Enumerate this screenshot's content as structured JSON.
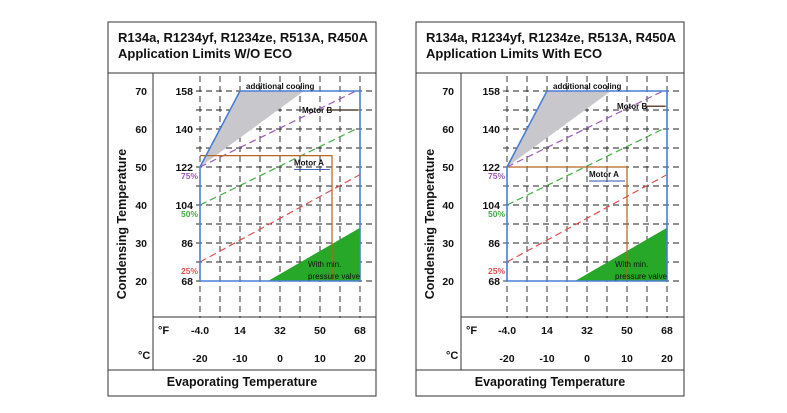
{
  "colors": {
    "pct75": "#9b59b6",
    "pct50": "#3fae3f",
    "pct25": "#e05050",
    "envelope": "#4a7fd6",
    "motor": "#b5651d",
    "cooling_fill": "#c8c8cc",
    "valve_fill": "#28a828"
  },
  "chart_data": [
    {
      "type": "line",
      "title_line1": "R134a, R1234yf, R1234ze, R513A, R450A",
      "title_line2": "Application Limits W/O ECO",
      "xlabel": "Evaporating Temperature",
      "ylabel": "Condensing Temperature",
      "x_unit_f": "°F",
      "x_unit_c": "°C",
      "x_ticks_f": [
        "-4.0",
        "14",
        "32",
        "50",
        "68"
      ],
      "x_ticks_c": [
        "-20",
        "-10",
        "0",
        "10",
        "20"
      ],
      "y_ticks_c": [
        "70",
        "60",
        "50",
        "40",
        "30",
        "20"
      ],
      "y_ticks_f": [
        "158",
        "140",
        "122",
        "104",
        "86",
        "68"
      ],
      "xlim": [
        -20,
        20
      ],
      "ylim": [
        20,
        70
      ],
      "grid": true,
      "envelope": [
        [
          -20,
          20
        ],
        [
          -20,
          50
        ],
        [
          -10,
          70
        ],
        [
          20,
          70
        ],
        [
          20,
          20
        ]
      ],
      "additional_cooling": {
        "label": "additional cooling",
        "points": [
          [
            -20,
            50
          ],
          [
            -10,
            70
          ],
          [
            6,
            70
          ]
        ]
      },
      "lines": [
        {
          "name": "75%",
          "points": [
            [
              -20,
              50
            ],
            [
              19,
              70
            ]
          ]
        },
        {
          "name": "50%",
          "points": [
            [
              -20,
              40
            ],
            [
              19,
              60
            ]
          ]
        },
        {
          "name": "25%",
          "points": [
            [
              -20,
              25
            ],
            [
              20,
              48
            ]
          ]
        }
      ],
      "motor_a": {
        "label": "Motor A",
        "points": [
          [
            -20,
            53
          ],
          [
            13,
            53
          ],
          [
            13,
            20
          ]
        ]
      },
      "motor_b": {
        "label": "Motor B",
        "points": [
          [
            12,
            65
          ],
          [
            20,
            65
          ]
        ]
      },
      "valve": {
        "label_line1": "With  min.",
        "label_line2": "pressure  valve",
        "points": [
          [
            -3,
            20
          ],
          [
            20,
            34
          ],
          [
            20,
            20
          ]
        ]
      }
    },
    {
      "type": "line",
      "title_line1": "R134a, R1234yf, R1234ze, R513A, R450A",
      "title_line2": "Application Limits With ECO",
      "xlabel": "Evaporating Temperature",
      "ylabel": "Condensing Temperature",
      "x_unit_f": "°F",
      "x_unit_c": "°C",
      "x_ticks_f": [
        "-4.0",
        "14",
        "32",
        "50",
        "68"
      ],
      "x_ticks_c": [
        "-20",
        "-10",
        "0",
        "10",
        "20"
      ],
      "y_ticks_c": [
        "70",
        "60",
        "50",
        "40",
        "30",
        "20"
      ],
      "y_ticks_f": [
        "158",
        "140",
        "122",
        "104",
        "86",
        "68"
      ],
      "xlim": [
        -20,
        20
      ],
      "ylim": [
        20,
        70
      ],
      "grid": true,
      "envelope": [
        [
          -20,
          20
        ],
        [
          -20,
          50
        ],
        [
          -10,
          70
        ],
        [
          20,
          70
        ],
        [
          20,
          20
        ]
      ],
      "additional_cooling": {
        "label": "additional cooling",
        "points": [
          [
            -20,
            50
          ],
          [
            -10,
            70
          ],
          [
            6,
            70
          ]
        ]
      },
      "lines": [
        {
          "name": "75%",
          "points": [
            [
              -20,
              50
            ],
            [
              19,
              70
            ]
          ]
        },
        {
          "name": "50%",
          "points": [
            [
              -20,
              40
            ],
            [
              19,
              60
            ]
          ]
        },
        {
          "name": "25%",
          "points": [
            [
              -20,
              25
            ],
            [
              20,
              48
            ]
          ]
        }
      ],
      "motor_a": {
        "label": "Motor A",
        "points": [
          [
            -20,
            50
          ],
          [
            10,
            50
          ],
          [
            10,
            20
          ]
        ]
      },
      "motor_b": {
        "label": "Motor B",
        "points": [
          [
            14,
            66
          ],
          [
            20,
            66
          ]
        ]
      },
      "valve": {
        "label_line1": "With  min.",
        "label_line2": "pressure  valve",
        "points": [
          [
            -3,
            20
          ],
          [
            20,
            34
          ],
          [
            20,
            20
          ]
        ]
      }
    }
  ]
}
